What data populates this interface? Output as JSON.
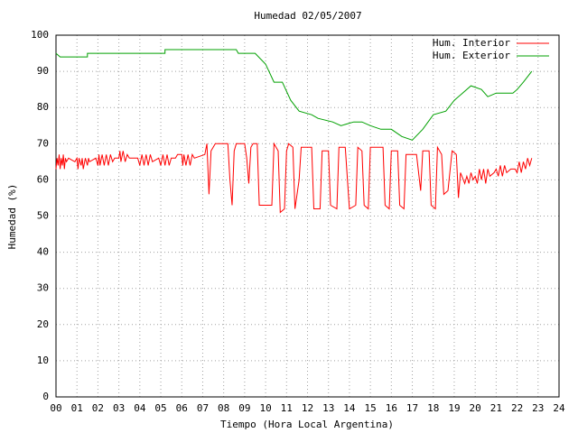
{
  "chart_data": {
    "type": "line",
    "title": "Humedad 02/05/2007",
    "x_label": "Tiempo (Hora Local Argentina)",
    "y_label": "Humedad (%)",
    "xlim": [
      0,
      24
    ],
    "ylim": [
      0,
      100
    ],
    "xticks": [
      {
        "value": 0,
        "label": "00"
      },
      {
        "value": 1,
        "label": "01"
      },
      {
        "value": 2,
        "label": "02"
      },
      {
        "value": 3,
        "label": "03"
      },
      {
        "value": 4,
        "label": "04"
      },
      {
        "value": 5,
        "label": "05"
      },
      {
        "value": 6,
        "label": "06"
      },
      {
        "value": 7,
        "label": "07"
      },
      {
        "value": 8,
        "label": "08"
      },
      {
        "value": 9,
        "label": "09"
      },
      10,
      11,
      12,
      13,
      14,
      15,
      16,
      17,
      18,
      19,
      20,
      21,
      22,
      23,
      24
    ],
    "yticks": [
      0,
      10,
      20,
      30,
      40,
      50,
      60,
      70,
      80,
      90,
      100
    ],
    "grid": true,
    "legend": "top-right",
    "series": [
      {
        "name": "Hum. Interior",
        "color": "#ff0000",
        "x": [
          0,
          0.05,
          0.1,
          0.15,
          0.2,
          0.25,
          0.3,
          0.35,
          0.4,
          0.45,
          0.5,
          0.6,
          0.9,
          1.0,
          1.05,
          1.1,
          1.2,
          1.25,
          1.3,
          1.4,
          1.5,
          1.55,
          1.6,
          1.9,
          2.0,
          2.05,
          2.1,
          2.2,
          2.3,
          2.4,
          2.5,
          2.6,
          2.7,
          2.8,
          3.0,
          3.05,
          3.1,
          3.2,
          3.3,
          3.4,
          3.5,
          3.9,
          4.0,
          4.1,
          4.2,
          4.3,
          4.4,
          4.5,
          4.6,
          4.9,
          5.0,
          5.1,
          5.2,
          5.3,
          5.4,
          5.5,
          5.7,
          5.8,
          6.0,
          6.05,
          6.1,
          6.2,
          6.3,
          6.4,
          6.5,
          6.6,
          7.1,
          7.2,
          7.3,
          7.4,
          7.6,
          8.2,
          8.3,
          8.4,
          8.5,
          8.6,
          9.0,
          9.1,
          9.2,
          9.3,
          9.4,
          9.6,
          9.7,
          10.3,
          10.4,
          10.6,
          10.7,
          10.9,
          11.0,
          11.1,
          11.3,
          11.4,
          11.6,
          11.7,
          12.2,
          12.3,
          12.6,
          12.7,
          13.0,
          13.1,
          13.4,
          13.5,
          13.8,
          14.0,
          14.3,
          14.4,
          14.6,
          14.7,
          14.9,
          15.0,
          15.6,
          15.7,
          15.9,
          16.0,
          16.3,
          16.4,
          16.6,
          16.7,
          17.2,
          17.3,
          17.4,
          17.5,
          17.8,
          17.9,
          18.1,
          18.2,
          18.4,
          18.5,
          18.7,
          18.9,
          19.1,
          19.2,
          19.3,
          19.5,
          19.6,
          19.7,
          19.8,
          19.9,
          20.0,
          20.1,
          20.2,
          20.3,
          20.4,
          20.5,
          20.6,
          20.7,
          20.9,
          21.0,
          21.1,
          21.2,
          21.3,
          21.4,
          21.5,
          21.7,
          21.9,
          22.0,
          22.1,
          22.2,
          22.3,
          22.4,
          22.5,
          22.6,
          22.7
        ],
        "values": [
          63,
          66,
          64,
          67,
          63,
          66,
          64,
          67,
          63,
          66,
          65,
          66,
          65,
          66,
          63,
          66,
          64,
          66,
          63,
          66,
          64,
          66,
          65,
          66,
          64,
          67,
          64,
          67,
          64,
          67,
          64,
          67,
          65,
          66,
          66,
          68,
          65,
          68,
          65,
          67,
          66,
          66,
          64,
          67,
          64,
          67,
          64,
          67,
          65,
          66,
          64,
          67,
          64,
          67,
          64,
          66,
          66,
          67,
          67,
          64,
          67,
          64,
          67,
          64,
          67,
          66,
          67,
          70,
          56,
          68,
          70,
          70,
          60,
          53,
          68,
          70,
          70,
          66,
          59,
          69,
          70,
          70,
          53,
          53,
          70,
          68,
          51,
          52,
          68,
          70,
          69,
          52,
          60,
          69,
          69,
          52,
          52,
          68,
          68,
          53,
          52,
          69,
          69,
          52,
          53,
          69,
          68,
          53,
          52,
          69,
          69,
          53,
          52,
          68,
          68,
          53,
          52,
          67,
          67,
          62,
          57,
          68,
          68,
          53,
          52,
          69,
          67,
          56,
          57,
          68,
          67,
          55,
          62,
          59,
          61,
          59,
          62,
          60,
          61,
          59,
          63,
          60,
          63,
          59,
          63,
          61,
          62,
          63,
          61,
          64,
          61,
          64,
          62,
          63,
          63,
          62,
          65,
          62,
          65,
          63,
          66,
          64,
          66
        ]
      },
      {
        "name": "Hum. Exterior",
        "color": "#00a000",
        "x": [
          0,
          0.2,
          1.5,
          1.5,
          5.2,
          5.2,
          8.6,
          8.7,
          9.5,
          10,
          10.4,
          10.8,
          11.2,
          11.6,
          12.2,
          12.5,
          13.2,
          13.6,
          14.2,
          14.6,
          15,
          15.5,
          16,
          16.5,
          17,
          17.5,
          18,
          18.6,
          19,
          19.4,
          19.8,
          20.3,
          20.6,
          21,
          21.8,
          22,
          22.3,
          22.7
        ],
        "values": [
          95,
          94,
          94,
          95,
          95,
          96,
          96,
          95,
          95,
          92,
          87,
          87,
          82,
          79,
          78,
          77,
          76,
          75,
          76,
          76,
          75,
          74,
          74,
          72,
          71,
          74,
          78,
          79,
          82,
          84,
          86,
          85,
          83,
          84,
          84,
          85,
          87,
          90
        ]
      }
    ]
  }
}
